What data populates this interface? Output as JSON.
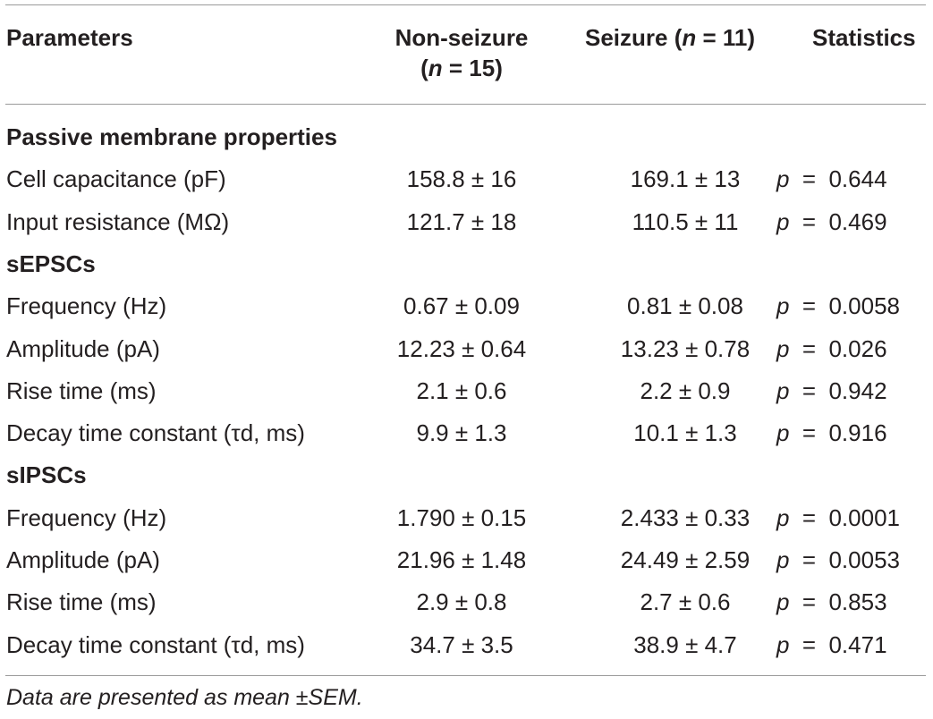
{
  "header": {
    "parameters": "Parameters",
    "non_seizure_line1": "Non-seizure",
    "non_seizure_n": "n",
    "non_seizure_rest": " = 15)",
    "seizure_label": "Seizure (",
    "seizure_n": "n",
    "seizure_rest": " = 11)",
    "statistics": "Statistics"
  },
  "sections": [
    {
      "title": "Passive membrane properties",
      "rows": [
        {
          "parameter": "Cell capacitance (pF)",
          "non_seizure": "158.8 ± 16",
          "seizure": "169.1 ± 13",
          "p_label": "p",
          "eq": "=",
          "p_value": "0.644"
        },
        {
          "parameter": "Input resistance (MΩ)",
          "non_seizure": "121.7 ± 18",
          "seizure": "110.5 ± 11",
          "p_label": "p",
          "eq": "=",
          "p_value": "0.469"
        }
      ]
    },
    {
      "title": "sEPSCs",
      "rows": [
        {
          "parameter": "Frequency (Hz)",
          "non_seizure": "0.67 ± 0.09",
          "seizure": "0.81 ± 0.08",
          "p_label": "p",
          "eq": "=",
          "p_value": "0.0058"
        },
        {
          "parameter": "Amplitude (pA)",
          "non_seizure": "12.23 ± 0.64",
          "seizure": "13.23 ± 0.78",
          "p_label": "p",
          "eq": "=",
          "p_value": "0.026"
        },
        {
          "parameter": "Rise time (ms)",
          "non_seizure": "2.1 ± 0.6",
          "seizure": "2.2 ± 0.9",
          "p_label": "p",
          "eq": "=",
          "p_value": "0.942"
        },
        {
          "parameter": "Decay time constant (τd, ms)",
          "non_seizure": "9.9 ± 1.3",
          "seizure": "10.1 ± 1.3",
          "p_label": "p",
          "eq": "=",
          "p_value": "0.916"
        }
      ]
    },
    {
      "title": "sIPSCs",
      "rows": [
        {
          "parameter": "Frequency (Hz)",
          "non_seizure": "1.790 ± 0.15",
          "seizure": "2.433 ± 0.33",
          "p_label": "p",
          "eq": "=",
          "p_value": "0.0001"
        },
        {
          "parameter": "Amplitude (pA)",
          "non_seizure": "21.96 ± 1.48",
          "seizure": "24.49 ± 2.59",
          "p_label": "p",
          "eq": "=",
          "p_value": "0.0053"
        },
        {
          "parameter": "Rise time (ms)",
          "non_seizure": "2.9 ± 0.8",
          "seizure": "2.7 ± 0.6",
          "p_label": "p",
          "eq": "=",
          "p_value": "0.853"
        },
        {
          "parameter": "Decay time constant (τd, ms)",
          "non_seizure": "34.7 ± 3.5",
          "seizure": "38.9 ± 4.7",
          "p_label": "p",
          "eq": "=",
          "p_value": "0.471"
        }
      ]
    }
  ],
  "footnote": "Data are presented as mean ±SEM."
}
